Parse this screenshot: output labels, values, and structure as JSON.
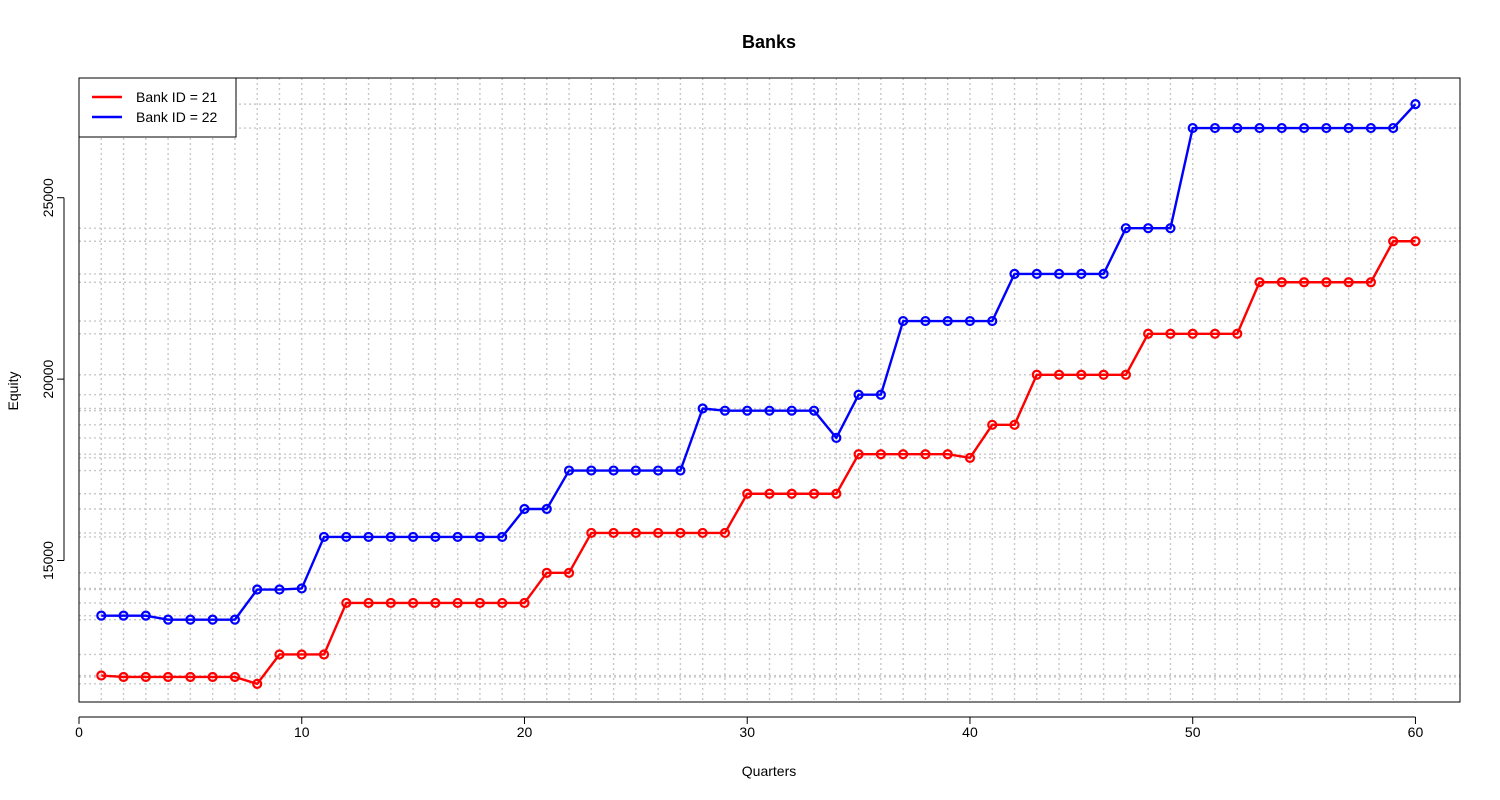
{
  "chart_data": {
    "type": "line",
    "title": "Banks",
    "xlabel": "Quarters",
    "ylabel": "Equity",
    "xlim": [
      0,
      62
    ],
    "ylim": [
      11100,
      28300
    ],
    "x_ticks": [
      0,
      10,
      20,
      30,
      40,
      50,
      60
    ],
    "y_ticks": [
      15000,
      20000,
      25000
    ],
    "grid": true,
    "legend_position": "top-left",
    "x": [
      1,
      2,
      3,
      4,
      5,
      6,
      7,
      8,
      9,
      10,
      11,
      12,
      13,
      14,
      15,
      16,
      17,
      18,
      19,
      20,
      21,
      22,
      23,
      24,
      25,
      26,
      27,
      28,
      29,
      30,
      31,
      32,
      33,
      34,
      35,
      36,
      37,
      38,
      39,
      40,
      41,
      42,
      43,
      44,
      45,
      46,
      47,
      48,
      49,
      50,
      51,
      52,
      53,
      54,
      55,
      56,
      57,
      58,
      59,
      60
    ],
    "series": [
      {
        "name": "Bank ID = 21",
        "color": "#ff0000",
        "values": [
          11830,
          11790,
          11790,
          11790,
          11790,
          11790,
          11790,
          11600,
          12410,
          12410,
          12410,
          13830,
          13830,
          13830,
          13830,
          13830,
          13830,
          13830,
          13830,
          13830,
          14660,
          14660,
          15760,
          15760,
          15760,
          15760,
          15760,
          15760,
          15760,
          16840,
          16840,
          16840,
          16840,
          16840,
          17930,
          17930,
          17930,
          17930,
          17930,
          17830,
          18740,
          18740,
          20120,
          20120,
          20120,
          20120,
          20120,
          21250,
          21250,
          21250,
          21250,
          21250,
          22670,
          22670,
          22670,
          22670,
          22670,
          22670,
          23800,
          23800
        ]
      },
      {
        "name": "Bank ID = 22",
        "color": "#0000ff",
        "values": [
          13480,
          13480,
          13480,
          13370,
          13370,
          13370,
          13370,
          14200,
          14200,
          14230,
          15650,
          15650,
          15650,
          15650,
          15650,
          15650,
          15650,
          15650,
          15650,
          16420,
          16420,
          17480,
          17480,
          17480,
          17480,
          17480,
          17480,
          19190,
          19130,
          19130,
          19130,
          19130,
          19130,
          18380,
          19570,
          19570,
          21600,
          21600,
          21600,
          21600,
          21600,
          22900,
          22900,
          22900,
          22900,
          22900,
          24160,
          24160,
          24160,
          26920,
          26920,
          26920,
          26920,
          26920,
          26920,
          26920,
          26920,
          26920,
          26920,
          27580
        ]
      }
    ]
  }
}
